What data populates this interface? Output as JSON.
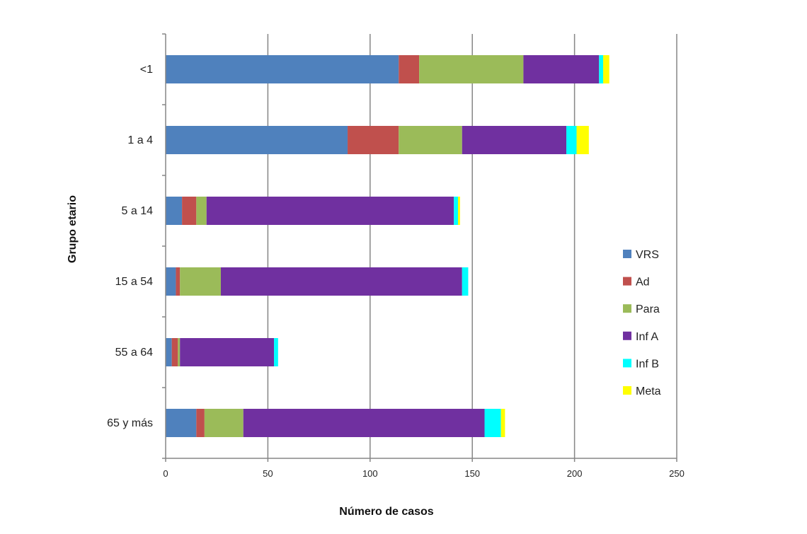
{
  "chart_data": {
    "type": "bar",
    "orientation": "horizontal",
    "stacked": true,
    "title": "",
    "xlabel": "Número de casos",
    "ylabel": "Grupo etario",
    "xlim": [
      0,
      250
    ],
    "xticks": [
      "0",
      "50",
      "100",
      "150",
      "200",
      "250"
    ],
    "grid": "vertical",
    "legend_position": "right",
    "categories": [
      "<1",
      "1 a 4",
      "5 a 14",
      "15 a 54",
      "55 a 64",
      "65 y más"
    ],
    "series": [
      {
        "name": "VRS",
        "color": "#4f81bd",
        "values": [
          114,
          89,
          8,
          5,
          3,
          15
        ]
      },
      {
        "name": "Ad",
        "color": "#c0504d",
        "values": [
          10,
          25,
          7,
          2,
          3,
          4
        ]
      },
      {
        "name": "Para",
        "color": "#9bbb59",
        "values": [
          51,
          31,
          5,
          20,
          1,
          19
        ]
      },
      {
        "name": "Inf A",
        "color": "#7030a0",
        "values": [
          37,
          51,
          121,
          118,
          46,
          118
        ]
      },
      {
        "name": "Inf B",
        "color": "#00ffff",
        "values": [
          2,
          5,
          2,
          3,
          2,
          8
        ]
      },
      {
        "name": "Meta",
        "color": "#ffff00",
        "values": [
          3,
          6,
          1,
          0,
          0,
          2
        ]
      }
    ]
  }
}
